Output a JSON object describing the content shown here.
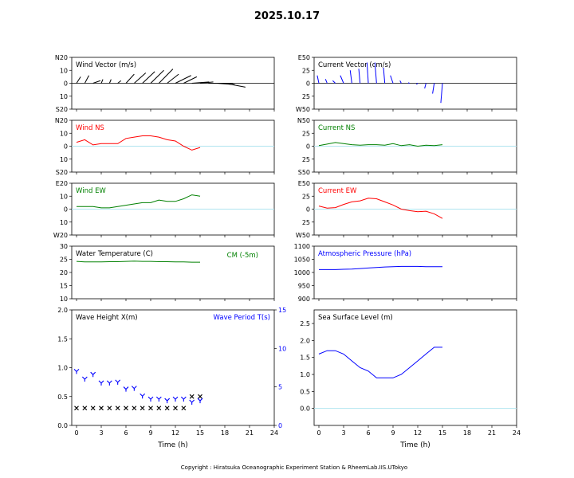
{
  "figure": {
    "title": "2025.10.17",
    "copyright": "Copyright : Hiratsuka Oceanographic Experiment Station & RheemLab.IIS.UTokyo",
    "xlabel": "Time (h)",
    "xticks": [
      "0",
      "3",
      "6",
      "9",
      "12",
      "15",
      "18",
      "21",
      "24"
    ]
  },
  "chart_data": [
    {
      "id": "wind_vector",
      "type": "vector",
      "title": "Wind Vector (m/s)",
      "title_color": "#000000",
      "yticks": [
        "N20",
        "10",
        "0",
        "10",
        "S20"
      ],
      "ylim": [
        -20,
        20
      ],
      "color": "#000000",
      "u_scale_per_hour": 0.1,
      "x": [
        0,
        1,
        2,
        3,
        4,
        5,
        6,
        7,
        8,
        9,
        10,
        11,
        12,
        13,
        14,
        15,
        16,
        17,
        18
      ],
      "u": [
        5,
        5,
        9,
        2,
        2,
        4,
        10,
        14,
        15,
        16,
        17,
        14,
        19,
        16,
        21,
        16,
        30,
        22,
        25
      ],
      "v": [
        5,
        6,
        2,
        3,
        3,
        2,
        7,
        8,
        9,
        10,
        11,
        7,
        6,
        5,
        1,
        1,
        0,
        -1,
        -3
      ]
    },
    {
      "id": "current_vector",
      "type": "vector",
      "title": "Current Vector (cm/s)",
      "title_color": "#000000",
      "yticks": [
        "E50",
        "25",
        "0",
        "25",
        "W50"
      ],
      "ylim": [
        -50,
        50
      ],
      "color": "#0000ff",
      "u_scale_per_hour": 0.04,
      "x": [
        0,
        1,
        2,
        3,
        4,
        5,
        6,
        7,
        8,
        9,
        10,
        11,
        12,
        13,
        14,
        15
      ],
      "u": [
        -5,
        -5,
        -8,
        -10,
        -5,
        -4,
        -4,
        -5,
        -4,
        -8,
        -4,
        -4,
        -4,
        -4,
        -5,
        -5
      ],
      "v": [
        15,
        8,
        5,
        15,
        25,
        28,
        40,
        40,
        30,
        15,
        5,
        1,
        -2,
        -10,
        -20,
        -38
      ]
    },
    {
      "id": "wind_ns",
      "type": "line",
      "title": "Wind NS",
      "title_color": "#ff0000",
      "yticks": [
        "N20",
        "10",
        "0",
        "10",
        "S20"
      ],
      "ylim": [
        -20,
        20
      ],
      "color": "#ff0000",
      "x": [
        0,
        1,
        2,
        3,
        4,
        5,
        6,
        7,
        8,
        9,
        10,
        11,
        12,
        13,
        14,
        15
      ],
      "y": [
        3,
        5,
        1,
        2,
        2,
        2,
        6,
        7,
        8,
        8,
        7,
        5,
        4,
        0,
        -3,
        -1
      ]
    },
    {
      "id": "current_ns",
      "type": "line",
      "title": "Current NS",
      "title_color": "#008000",
      "yticks": [
        "N50",
        "25",
        "0",
        "25",
        "S50"
      ],
      "ylim": [
        -50,
        50
      ],
      "color": "#008000",
      "x": [
        0,
        1,
        2,
        3,
        4,
        5,
        6,
        7,
        8,
        9,
        10,
        11,
        12,
        13,
        14,
        15
      ],
      "y": [
        1,
        4,
        7,
        5,
        3,
        2,
        3,
        3,
        2,
        5,
        1,
        3,
        0,
        2,
        1,
        3
      ]
    },
    {
      "id": "wind_ew",
      "type": "line",
      "title": "Wind EW",
      "title_color": "#008000",
      "yticks": [
        "E20",
        "10",
        "0",
        "10",
        "W20"
      ],
      "ylim": [
        -20,
        20
      ],
      "color": "#008000",
      "x": [
        0,
        1,
        2,
        3,
        4,
        5,
        6,
        7,
        8,
        9,
        10,
        11,
        12,
        13,
        14,
        15
      ],
      "y": [
        2,
        2,
        2,
        1,
        1,
        2,
        3,
        4,
        5,
        5,
        7,
        6,
        6,
        8,
        11,
        10
      ]
    },
    {
      "id": "current_ew",
      "type": "line",
      "title": "Current EW",
      "title_color": "#ff0000",
      "yticks": [
        "E50",
        "25",
        "0",
        "25",
        "W50"
      ],
      "ylim": [
        -50,
        50
      ],
      "color": "#ff0000",
      "x": [
        0,
        1,
        2,
        3,
        4,
        5,
        6,
        7,
        8,
        9,
        10,
        11,
        12,
        13,
        14,
        15
      ],
      "y": [
        6,
        2,
        3,
        9,
        14,
        16,
        21,
        20,
        14,
        8,
        0,
        -3,
        -5,
        -4,
        -9,
        -18
      ]
    },
    {
      "id": "water_temp",
      "type": "line",
      "title": "Water Temperature (C)",
      "title_color": "#000000",
      "note": "CM (-5m)",
      "note_color": "#008000",
      "yticks": [
        "30",
        "25",
        "20",
        "15",
        "10"
      ],
      "ylim": [
        10,
        30
      ],
      "color": "#008000",
      "x": [
        0,
        1,
        2,
        3,
        4,
        5,
        6,
        7,
        8,
        9,
        10,
        11,
        12,
        13,
        14,
        15
      ],
      "y": [
        24.2,
        24.0,
        24.0,
        24.0,
        24.1,
        24.1,
        24.2,
        24.3,
        24.2,
        24.2,
        24.1,
        24.1,
        24.0,
        24.0,
        23.9,
        23.9
      ]
    },
    {
      "id": "pressure",
      "type": "line",
      "title": "Atmospheric Pressure (hPa)",
      "title_color": "#0000ff",
      "yticks": [
        "1100",
        "1050",
        "1000",
        "950",
        "900"
      ],
      "ylim": [
        900,
        1100
      ],
      "color": "#0000ff",
      "x": [
        0,
        1,
        2,
        3,
        4,
        5,
        6,
        7,
        8,
        9,
        10,
        11,
        12,
        13,
        14,
        15
      ],
      "y": [
        1011,
        1011,
        1011,
        1012,
        1013,
        1015,
        1017,
        1019,
        1021,
        1022,
        1023,
        1023,
        1023,
        1022,
        1022,
        1022
      ]
    },
    {
      "id": "wave",
      "type": "scatter",
      "title": "Wave Height X(m)",
      "title_color": "#000000",
      "title2": "Wave Period T(s)",
      "title2_color": "#0000ff",
      "yticks": [
        "2.0",
        "1.5",
        "1.0",
        "0.5",
        "0.0"
      ],
      "ylim": [
        0,
        2.0
      ],
      "y2ticks": [
        "15",
        "10",
        "5",
        "0"
      ],
      "y2lim": [
        0,
        15
      ],
      "height_color": "#000000",
      "period_color": "#0000ff",
      "x": [
        0,
        1,
        2,
        3,
        4,
        5,
        6,
        7,
        8,
        9,
        10,
        11,
        12,
        13,
        14,
        15
      ],
      "height": [
        0.3,
        0.3,
        0.3,
        0.3,
        0.3,
        0.3,
        0.3,
        0.3,
        0.3,
        0.3,
        0.3,
        0.3,
        0.3,
        0.3,
        0.5,
        0.5
      ],
      "period": [
        7.0,
        6.0,
        6.6,
        5.5,
        5.5,
        5.6,
        4.7,
        4.8,
        3.8,
        3.4,
        3.4,
        3.2,
        3.4,
        3.4,
        3.0,
        3.2
      ]
    },
    {
      "id": "sea_level",
      "type": "line",
      "title": "Sea Surface Level (m)",
      "title_color": "#000000",
      "yticks": [
        "2.5",
        "2.0",
        "1.5",
        "1.0",
        "0.5",
        "0.0"
      ],
      "ylim": [
        -0.5,
        2.9
      ],
      "color": "#0000ff",
      "x": [
        0,
        1,
        2,
        3,
        4,
        5,
        6,
        7,
        8,
        9,
        10,
        11,
        12,
        13,
        14,
        15
      ],
      "y": [
        1.6,
        1.7,
        1.7,
        1.6,
        1.4,
        1.2,
        1.1,
        0.9,
        0.9,
        0.9,
        1.0,
        1.2,
        1.4,
        1.6,
        1.8,
        1.8
      ]
    }
  ]
}
